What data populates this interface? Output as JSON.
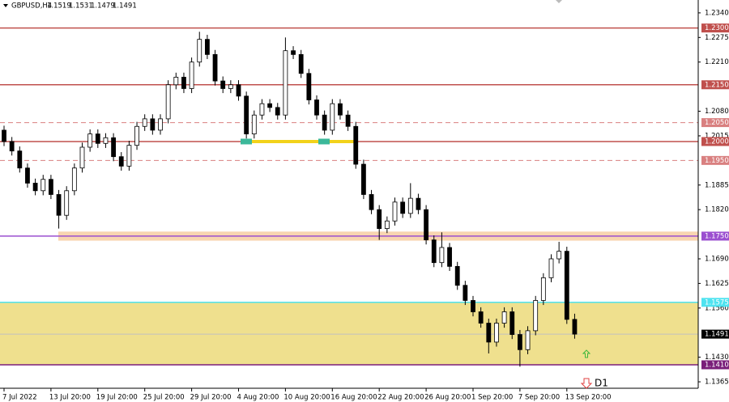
{
  "chart_data": {
    "type": "candlestick",
    "header": {
      "symbol": "GBPUSD,H4",
      "open": 1.1519,
      "high": 1.1531,
      "low": 1.1479,
      "close": 1.1491
    },
    "categories": [
      "7 Jul 2022",
      null,
      null,
      null,
      null,
      null,
      "13 Jul 20:00",
      null,
      null,
      null,
      null,
      null,
      "19 Jul 20:00",
      null,
      null,
      null,
      null,
      null,
      "25 Jul 20:00",
      null,
      null,
      null,
      null,
      null,
      "29 Jul 20:00",
      null,
      null,
      null,
      null,
      null,
      "4 Aug 20:00",
      null,
      null,
      null,
      null,
      null,
      "10 Aug 20:00",
      null,
      null,
      null,
      null,
      null,
      "16 Aug 20:00",
      null,
      null,
      null,
      null,
      null,
      "22 Aug 20:00",
      null,
      null,
      null,
      null,
      null,
      "26 Aug 20:00",
      null,
      null,
      null,
      null,
      null,
      "1 Sep 20:00",
      null,
      null,
      null,
      null,
      null,
      "7 Sep 20:00",
      null,
      null,
      null,
      null,
      null,
      "13 Sep 20:00",
      null
    ],
    "open": [
      1.203,
      1.2,
      1.1975,
      1.193,
      1.189,
      1.187,
      1.19,
      1.186,
      1.1805,
      1.187,
      1.193,
      1.1985,
      1.202,
      1.1995,
      1.201,
      1.196,
      1.1935,
      1.199,
      1.204,
      1.206,
      1.203,
      1.206,
      1.215,
      1.217,
      1.214,
      1.221,
      1.227,
      1.223,
      1.216,
      1.214,
      1.215,
      1.212,
      1.202,
      1.207,
      1.21,
      1.209,
      1.207,
      1.224,
      1.223,
      1.218,
      1.211,
      1.207,
      1.203,
      1.21,
      1.207,
      1.204,
      1.194,
      1.186,
      1.182,
      1.177,
      1.179,
      1.184,
      1.181,
      1.185,
      1.182,
      1.174,
      1.168,
      1.172,
      1.167,
      1.162,
      1.158,
      1.155,
      1.152,
      1.147,
      1.152,
      1.155,
      1.149,
      1.145,
      1.15,
      1.158,
      1.164,
      1.169,
      1.171,
      1.153
    ],
    "high": [
      1.2042,
      1.2012,
      1.1987,
      1.1942,
      1.1902,
      1.1912,
      1.1912,
      1.1872,
      1.1882,
      1.1942,
      1.1997,
      1.2032,
      1.2032,
      1.2022,
      1.2022,
      1.1972,
      1.2002,
      1.2052,
      1.2072,
      1.2072,
      1.2072,
      1.2162,
      1.2182,
      1.2182,
      1.2222,
      1.229,
      1.2282,
      1.2242,
      1.2172,
      1.2162,
      1.2162,
      1.2132,
      1.2082,
      1.2112,
      1.2112,
      1.2102,
      1.2275,
      1.2252,
      1.2242,
      1.2192,
      1.2122,
      1.2082,
      1.2112,
      1.2112,
      1.2082,
      1.2052,
      1.1952,
      1.1872,
      1.1832,
      1.1802,
      1.1852,
      1.1852,
      1.189,
      1.1862,
      1.1832,
      1.1752,
      1.176,
      1.1732,
      1.1682,
      1.1632,
      1.1592,
      1.1562,
      1.1532,
      1.1532,
      1.1562,
      1.1562,
      1.1502,
      1.1512,
      1.1592,
      1.1652,
      1.1702,
      1.1735,
      1.1722,
      1.1545
    ],
    "low": [
      1.1988,
      1.1963,
      1.1918,
      1.1878,
      1.1858,
      1.1858,
      1.1848,
      1.177,
      1.1793,
      1.1858,
      1.1918,
      1.1973,
      1.1983,
      1.1983,
      1.1948,
      1.1923,
      1.1923,
      1.1978,
      1.2028,
      1.2018,
      1.2018,
      1.2048,
      1.2138,
      1.2128,
      1.2128,
      1.2198,
      1.2218,
      1.2148,
      1.2128,
      1.2128,
      1.2108,
      1.2008,
      1.2008,
      1.2058,
      1.2078,
      1.2058,
      1.2058,
      1.2218,
      1.2168,
      1.2098,
      1.2058,
      1.2018,
      1.2018,
      1.2058,
      1.2028,
      1.1928,
      1.1848,
      1.1808,
      1.174,
      1.1758,
      1.1778,
      1.1798,
      1.1798,
      1.1808,
      1.1728,
      1.1668,
      1.1668,
      1.1658,
      1.1608,
      1.1568,
      1.1538,
      1.1508,
      1.144,
      1.1458,
      1.1508,
      1.1478,
      1.1405,
      1.1438,
      1.1488,
      1.1568,
      1.1628,
      1.1678,
      1.1518,
      1.1479
    ],
    "close": [
      1.2,
      1.1975,
      1.193,
      1.189,
      1.187,
      1.19,
      1.186,
      1.1805,
      1.187,
      1.193,
      1.1985,
      1.202,
      1.1995,
      1.201,
      1.196,
      1.1935,
      1.199,
      1.204,
      1.206,
      1.203,
      1.206,
      1.215,
      1.217,
      1.214,
      1.221,
      1.227,
      1.223,
      1.216,
      1.214,
      1.215,
      1.212,
      1.202,
      1.207,
      1.21,
      1.209,
      1.207,
      1.224,
      1.223,
      1.218,
      1.211,
      1.207,
      1.203,
      1.21,
      1.207,
      1.204,
      1.194,
      1.186,
      1.182,
      1.177,
      1.179,
      1.184,
      1.181,
      1.185,
      1.182,
      1.174,
      1.168,
      1.172,
      1.167,
      1.162,
      1.158,
      1.155,
      1.152,
      1.147,
      1.152,
      1.155,
      1.149,
      1.145,
      1.15,
      1.158,
      1.164,
      1.169,
      1.171,
      1.153,
      1.1491
    ],
    "ylim": [
      1.1348,
      1.2374
    ],
    "yticks": [
      {
        "value": 1.234,
        "label": "1.2340"
      },
      {
        "value": 1.2275,
        "label": "1.2275"
      },
      {
        "value": 1.221,
        "label": "1.2210"
      },
      {
        "value": 1.208,
        "label": "1.2080"
      },
      {
        "value": 1.2015,
        "label": "1.2015"
      },
      {
        "value": 1.1885,
        "label": "1.1885"
      },
      {
        "value": 1.182,
        "label": "1.1820"
      },
      {
        "value": 1.169,
        "label": "1.1690"
      },
      {
        "value": 1.1625,
        "label": "1.1625"
      },
      {
        "value": 1.156,
        "label": "1.1560"
      },
      {
        "value": 1.143,
        "label": "1.1430"
      },
      {
        "value": 1.1365,
        "label": "1.1365"
      }
    ],
    "zones": [
      {
        "from": 1.1738,
        "to": 1.1762,
        "color": "#f8d5b0"
      },
      {
        "from": 1.141,
        "to": 1.1575,
        "color": "#efe08e"
      }
    ],
    "levels": [
      {
        "value": 1.23,
        "label": "1.2300",
        "color": "#c0504d",
        "style": "solid"
      },
      {
        "value": 1.215,
        "label": "1.2150",
        "color": "#c0504d",
        "style": "solid"
      },
      {
        "value": 1.205,
        "label": "1.2050",
        "color": "#d98080",
        "style": "dashed"
      },
      {
        "value": 1.2,
        "label": "1.2000",
        "color": "#c0504d",
        "style": "solid"
      },
      {
        "value": 1.195,
        "label": "1.1950",
        "color": "#d98080",
        "style": "dashed"
      },
      {
        "value": 1.175,
        "label": "1.1750",
        "color": "#9b4fd0",
        "style": "solid"
      },
      {
        "value": 1.1575,
        "label": "1.1575",
        "color": "#4fe3f0",
        "style": "solid"
      },
      {
        "value": 1.141,
        "label": "1.1410",
        "color": "#7a1f7a",
        "style": "solid"
      }
    ],
    "current": {
      "value": 1.1491,
      "label": "1.1491"
    },
    "highlight": {
      "value": 1.2,
      "color": "#f2d21b"
    },
    "annotation": "D1"
  }
}
